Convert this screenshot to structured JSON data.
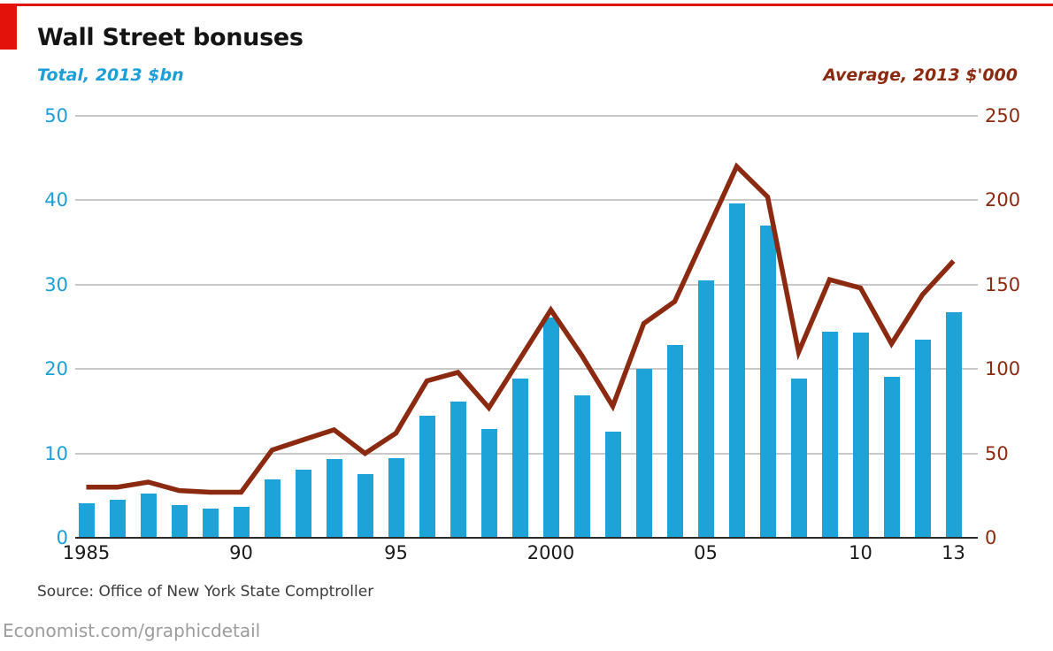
{
  "header": {
    "title": "Wall Street bonuses",
    "left_axis_title": "Total, 2013 $bn",
    "right_axis_title": "Average, 2013 $'000"
  },
  "footer": {
    "source": "Source: Office of New York State Comptroller",
    "site": "Economist.com/graphicdetail"
  },
  "colors": {
    "accent_red": "#e3120b",
    "bar_blue": "#1da3d8",
    "line_brick": "#8b2a10",
    "axis_blue_text": "#1d9ed9",
    "axis_brick_text": "#8b2a10",
    "gridline": "#c9c9c9",
    "baseline": "#2b2b2b"
  },
  "chart_data": {
    "type": "bar-line-combo",
    "title": "Wall Street bonuses",
    "x": [
      1985,
      1986,
      1987,
      1988,
      1989,
      1990,
      1991,
      1992,
      1993,
      1994,
      1995,
      1996,
      1997,
      1998,
      1999,
      2000,
      2001,
      2002,
      2003,
      2004,
      2005,
      2006,
      2007,
      2008,
      2009,
      2010,
      2011,
      2012,
      2013
    ],
    "series": [
      {
        "name": "Total, 2013 $bn",
        "type": "bar",
        "axis": "left",
        "values": [
          4.1,
          4.5,
          5.2,
          3.9,
          3.5,
          3.7,
          6.9,
          8.1,
          9.3,
          7.6,
          9.4,
          14.5,
          16.1,
          12.9,
          18.9,
          26.1,
          16.9,
          12.6,
          20.0,
          22.9,
          30.5,
          39.6,
          37.0,
          18.9,
          24.4,
          24.3,
          19.1,
          23.5,
          26.7
        ]
      },
      {
        "name": "Average, 2013 $'000",
        "type": "line",
        "axis": "right",
        "values": [
          30,
          30,
          33,
          28,
          27,
          27,
          52,
          58,
          64,
          50,
          62,
          93,
          98,
          77,
          106,
          135,
          108,
          78,
          127,
          140,
          180,
          220,
          202,
          110,
          153,
          148,
          115,
          144,
          164
        ]
      }
    ],
    "left_axis": {
      "range": [
        0,
        50
      ],
      "ticks": [
        50,
        40,
        30,
        20,
        10,
        0
      ]
    },
    "right_axis": {
      "range": [
        0,
        250
      ],
      "ticks": [
        250,
        200,
        150,
        100,
        50,
        0
      ]
    },
    "x_ticks": [
      {
        "label": "1985",
        "index": 0
      },
      {
        "label": "90",
        "index": 5
      },
      {
        "label": "95",
        "index": 10
      },
      {
        "label": "2000",
        "index": 15
      },
      {
        "label": "05",
        "index": 20
      },
      {
        "label": "10",
        "index": 25
      },
      {
        "label": "13",
        "index": 28
      }
    ],
    "grid": true,
    "legend_position": "none"
  }
}
